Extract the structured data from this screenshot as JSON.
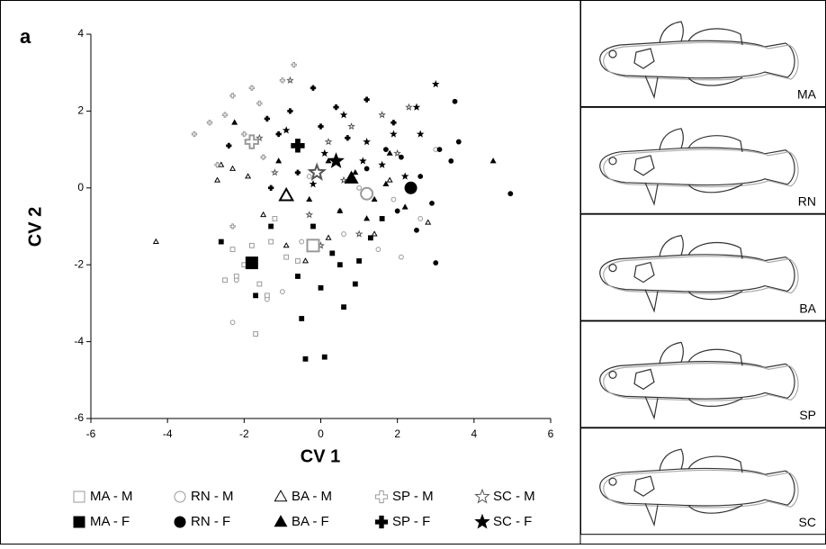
{
  "chart_data": {
    "type": "scatter",
    "panel_label": "a",
    "x_label": "CV 1",
    "y_label": "CV 2",
    "xlim": [
      -6,
      6
    ],
    "ylim": [
      -6,
      4
    ],
    "xticks": [
      -6,
      -4,
      -2,
      0,
      2,
      4,
      6
    ],
    "yticks": [
      -6,
      -4,
      -2,
      0,
      2,
      4
    ],
    "series": [
      {
        "name": "MA - M",
        "marker": "square",
        "filled": false,
        "color": "#999999",
        "centroid": [
          -0.2,
          -1.5
        ],
        "x": [
          -2.2,
          -1.6,
          -2.0,
          -1.4,
          -0.9,
          -1.8,
          -2.5,
          -1.2,
          -1.7,
          -1.3,
          -0.6,
          -2.3
        ],
        "y": [
          -2.3,
          -2.5,
          -2.0,
          -2.8,
          -1.8,
          -1.5,
          -2.4,
          -0.8,
          -3.8,
          -1.4,
          -1.9,
          -1.6
        ]
      },
      {
        "name": "RN - M",
        "marker": "circle",
        "filled": false,
        "color": "#999999",
        "centroid": [
          1.2,
          -0.15
        ],
        "x": [
          -2.3,
          -2.2,
          -1.0,
          -1.4,
          -0.5,
          0.6,
          1.5,
          2.1,
          1.0,
          1.9,
          2.6,
          3.0,
          -0.3,
          0.5
        ],
        "y": [
          -3.5,
          -2.4,
          -2.7,
          -2.9,
          -1.4,
          -1.2,
          -1.6,
          -1.8,
          0.0,
          -0.3,
          -0.8,
          1.0,
          0.3,
          -0.6
        ]
      },
      {
        "name": "BA - M",
        "marker": "triangle",
        "filled": false,
        "color": "#000000",
        "centroid": [
          -0.9,
          -0.2
        ],
        "x": [
          -4.3,
          -2.3,
          -2.7,
          -1.5,
          -0.4,
          0.2,
          1.8,
          2.8,
          -1.9,
          -0.9,
          1.4,
          -2.6
        ],
        "y": [
          -1.4,
          0.5,
          0.2,
          -0.7,
          -1.9,
          -1.3,
          0.2,
          -0.9,
          0.3,
          -1.5,
          -1.2,
          0.6
        ]
      },
      {
        "name": "SP - M",
        "marker": "cross",
        "filled": false,
        "color": "#999999",
        "centroid": [
          -1.8,
          1.2
        ],
        "x": [
          -0.7,
          -1.0,
          -1.8,
          -2.3,
          -2.9,
          -3.3,
          -2.7,
          -2.3,
          -1.6,
          -1.5,
          -2.0,
          -2.5
        ],
        "y": [
          3.2,
          2.8,
          2.6,
          2.4,
          1.7,
          1.4,
          0.6,
          -1.0,
          2.2,
          0.8,
          1.4,
          1.9
        ]
      },
      {
        "name": "SC - M",
        "marker": "star",
        "filled": false,
        "color": "#555555",
        "centroid": [
          -0.1,
          0.4
        ],
        "x": [
          -0.8,
          0.8,
          1.6,
          0.2,
          -1.2,
          -0.3,
          0.6,
          2.3,
          1.0,
          -1.6,
          2.0,
          0.0
        ],
        "y": [
          2.8,
          1.6,
          1.9,
          1.2,
          0.4,
          -0.7,
          0.2,
          2.1,
          -1.2,
          1.3,
          0.9,
          -1.5
        ]
      },
      {
        "name": "MA - F",
        "marker": "square",
        "filled": true,
        "color": "#000000",
        "centroid": [
          -1.8,
          -1.95
        ],
        "x": [
          -0.5,
          -0.4,
          0.1,
          0.6,
          -0.6,
          0.0,
          0.5,
          0.9,
          -1.3,
          -2.6,
          -1.7,
          0.3,
          1.3,
          1.6,
          -0.2,
          1.0
        ],
        "y": [
          -3.4,
          -4.45,
          -4.4,
          -3.1,
          -2.3,
          -2.6,
          -2.0,
          -2.5,
          -1.0,
          -1.4,
          -2.8,
          -1.7,
          -1.3,
          -0.8,
          -1.0,
          -1.9
        ]
      },
      {
        "name": "RN - F",
        "marker": "circle",
        "filled": true,
        "color": "#000000",
        "centroid": [
          2.35,
          0.0
        ],
        "x": [
          3.5,
          3.1,
          3.4,
          4.95,
          3.0,
          2.5,
          2.9,
          2.1,
          2.6,
          1.7,
          1.2,
          2.0,
          3.6
        ],
        "y": [
          2.25,
          1.0,
          0.7,
          -0.15,
          -1.95,
          -1.1,
          -0.4,
          0.8,
          0.3,
          1.0,
          0.5,
          -0.6,
          1.2
        ]
      },
      {
        "name": "BA - F",
        "marker": "triangle",
        "filled": true,
        "color": "#000000",
        "centroid": [
          0.8,
          0.25
        ],
        "x": [
          4.5,
          -2.25,
          0.5,
          1.7,
          1.4,
          0.9,
          -0.3,
          2.2,
          0.2,
          1.8,
          -1.1,
          1.2
        ],
        "y": [
          0.7,
          1.7,
          -0.6,
          0.1,
          -0.3,
          0.4,
          -0.3,
          -0.5,
          0.7,
          0.9,
          0.7,
          -0.8
        ]
      },
      {
        "name": "SP - F",
        "marker": "cross",
        "filled": true,
        "color": "#000000",
        "centroid": [
          -0.6,
          1.1
        ],
        "x": [
          -0.2,
          1.2,
          0.4,
          -0.8,
          -1.4,
          -2.4,
          -1.1,
          0.0,
          -0.6,
          -1.3,
          0.7,
          1.9
        ],
        "y": [
          2.6,
          2.3,
          2.1,
          2.0,
          1.8,
          1.1,
          1.4,
          1.6,
          0.4,
          0.0,
          1.3,
          1.7
        ]
      },
      {
        "name": "SC - F",
        "marker": "star",
        "filled": true,
        "color": "#000000",
        "centroid": [
          0.4,
          0.7
        ],
        "x": [
          3.0,
          2.5,
          1.9,
          0.6,
          1.2,
          1.6,
          0.1,
          2.2,
          -0.2,
          -0.9,
          1.1,
          2.6
        ],
        "y": [
          2.7,
          2.1,
          1.4,
          1.9,
          1.2,
          0.6,
          0.9,
          0.3,
          0.1,
          1.5,
          0.7,
          1.4
        ]
      }
    ]
  },
  "panels": [
    {
      "label": "MA"
    },
    {
      "label": "RN"
    },
    {
      "label": "BA"
    },
    {
      "label": "SP"
    },
    {
      "label": "SC"
    }
  ]
}
